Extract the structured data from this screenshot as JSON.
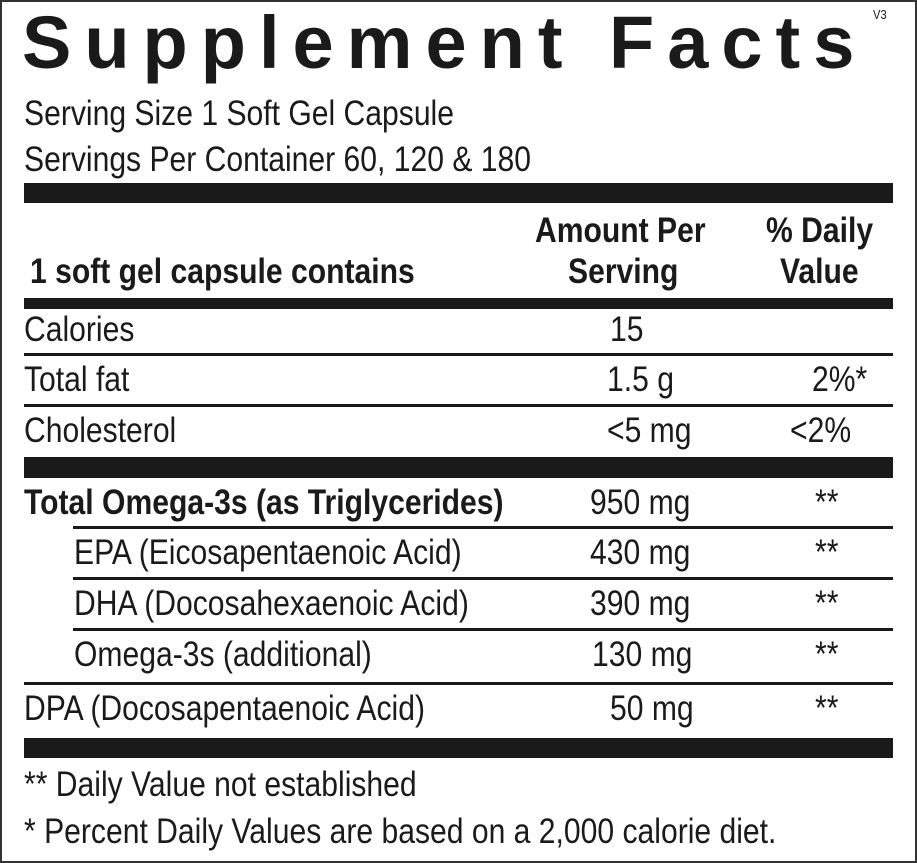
{
  "title": "Supplement Facts",
  "version": "V3",
  "serving_size": "Serving Size 1 Soft Gel Capsule",
  "servings_per_container": "Servings Per Container 60, 120 & 180",
  "header": {
    "contains": "1 soft gel capsule contains",
    "amount_1": "Amount Per",
    "amount_2": "Serving",
    "dv_1": "% Daily",
    "dv_2": "Value"
  },
  "rows": [
    {
      "name": "Calories",
      "amount": "15",
      "dv": ""
    },
    {
      "name": "Total fat",
      "amount": "1.5 g",
      "dv": "2%*"
    },
    {
      "name": "Cholesterol",
      "amount": "<5 mg",
      "dv": "<2%"
    },
    {
      "name": "Total Omega-3s (as Triglycerides)",
      "amount": "950 mg",
      "dv": "**"
    },
    {
      "name": "EPA (Eicosapentaenoic Acid)",
      "amount": "430 mg",
      "dv": "**"
    },
    {
      "name": "DHA (Docosahexaenoic Acid)",
      "amount": "390 mg",
      "dv": "**"
    },
    {
      "name": "Omega-3s (additional)",
      "amount": "130 mg",
      "dv": "**"
    },
    {
      "name": "DPA (Docosapentaenoic Acid)",
      "amount": "50 mg",
      "dv": "**"
    }
  ],
  "footnotes": [
    "** Daily Value not established",
    "* Percent Daily Values are based on a 2,000 calorie diet."
  ]
}
